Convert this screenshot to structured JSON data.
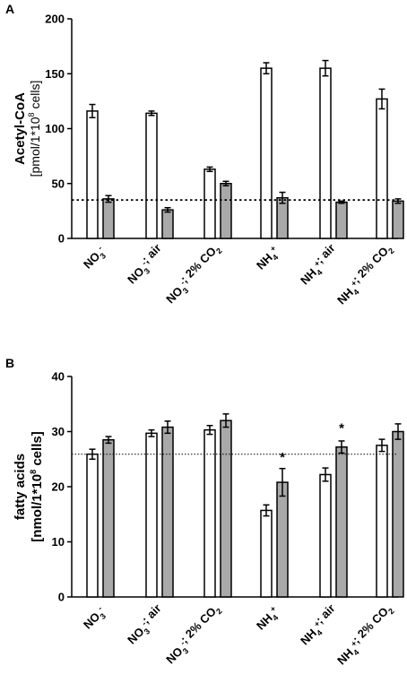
{
  "chart_data": [
    {
      "type": "bar",
      "panel_label": "A",
      "ylabel": "Acetyl-CoA",
      "ylabel_unit": [
        "[pmol/1*10",
        "8",
        " cells]"
      ],
      "ylim": [
        0,
        200
      ],
      "yticks": [
        "0",
        "50",
        "100",
        "150",
        "200"
      ],
      "categories": [
        {
          "parts": [
            [
              "NO",
              ""
            ],
            [
              "3",
              "sub"
            ],
            [
              "-",
              "sup"
            ]
          ]
        },
        {
          "parts": [
            [
              "NO",
              ""
            ],
            [
              "3",
              "sub"
            ],
            [
              "-",
              "sup"
            ],
            [
              "; air",
              ""
            ]
          ]
        },
        {
          "parts": [
            [
              "NO",
              ""
            ],
            [
              "3",
              "sub"
            ],
            [
              "-",
              "sup"
            ],
            [
              "; 2% CO",
              ""
            ],
            [
              "2",
              "sub"
            ]
          ]
        },
        {
          "parts": [
            [
              "NH",
              ""
            ],
            [
              "4",
              "sub"
            ],
            [
              "+",
              "sup"
            ]
          ]
        },
        {
          "parts": [
            [
              "NH",
              ""
            ],
            [
              "4",
              "sub"
            ],
            [
              "+",
              "sup"
            ],
            [
              "; air",
              ""
            ]
          ]
        },
        {
          "parts": [
            [
              "NH",
              ""
            ],
            [
              "4",
              "sub"
            ],
            [
              "+",
              "sup"
            ],
            [
              "; 2% CO",
              ""
            ],
            [
              "2",
              "sub"
            ]
          ]
        }
      ],
      "series": [
        {
          "color": "#ffffff",
          "values": [
            116,
            114,
            63,
            155,
            155,
            127
          ],
          "errors": [
            6,
            2,
            2,
            5,
            7,
            9
          ]
        },
        {
          "color": "#a9a9a9",
          "values": [
            36,
            26,
            50,
            37,
            33,
            34
          ],
          "errors": [
            3,
            2,
            2,
            5,
            1,
            2
          ]
        }
      ],
      "reference_line": {
        "value": 35,
        "style": "dotted-heavy"
      },
      "annotations": []
    },
    {
      "type": "bar",
      "panel_label": "B",
      "ylabel": "fatty acids",
      "ylabel_unit": [
        "[nmol/1*10",
        "8",
        " cells]"
      ],
      "ylim": [
        0,
        40
      ],
      "yticks": [
        "0",
        "10",
        "20",
        "30",
        "40"
      ],
      "categories": [
        {
          "parts": [
            [
              "NO",
              ""
            ],
            [
              "3",
              "sub"
            ],
            [
              "-",
              "sup"
            ]
          ]
        },
        {
          "parts": [
            [
              "NO",
              ""
            ],
            [
              "3",
              "sub"
            ],
            [
              "-",
              "sup"
            ],
            [
              "; air",
              ""
            ]
          ]
        },
        {
          "parts": [
            [
              "NO",
              ""
            ],
            [
              "3",
              "sub"
            ],
            [
              "-",
              "sup"
            ],
            [
              "; 2% CO",
              ""
            ],
            [
              "2",
              "sub"
            ]
          ]
        },
        {
          "parts": [
            [
              "NH",
              ""
            ],
            [
              "4",
              "sub"
            ],
            [
              "+",
              "sup"
            ]
          ]
        },
        {
          "parts": [
            [
              "NH",
              ""
            ],
            [
              "4",
              "sub"
            ],
            [
              "+",
              "sup"
            ],
            [
              "; air",
              ""
            ]
          ]
        },
        {
          "parts": [
            [
              "NH",
              ""
            ],
            [
              "4",
              "sub"
            ],
            [
              "+",
              "sup"
            ],
            [
              "; 2% CO",
              ""
            ],
            [
              "2",
              "sub"
            ]
          ]
        }
      ],
      "series": [
        {
          "color": "#ffffff",
          "values": [
            25.9,
            29.7,
            30.3,
            15.7,
            22.2,
            27.5
          ],
          "errors": [
            0.9,
            0.6,
            0.8,
            1.0,
            1.2,
            1.1
          ]
        },
        {
          "color": "#a9a9a9",
          "values": [
            28.5,
            30.8,
            32.0,
            20.8,
            27.2,
            30.0
          ],
          "errors": [
            0.6,
            1.1,
            1.2,
            2.5,
            1.1,
            1.4
          ]
        }
      ],
      "reference_line": {
        "value": 25.9,
        "style": "dotted-thin"
      },
      "annotations": [
        {
          "text": "*",
          "category": 3,
          "series": 1,
          "y": 26.0
        },
        {
          "text": "*",
          "category": 4,
          "series": 1,
          "y": 31.3
        }
      ]
    }
  ]
}
